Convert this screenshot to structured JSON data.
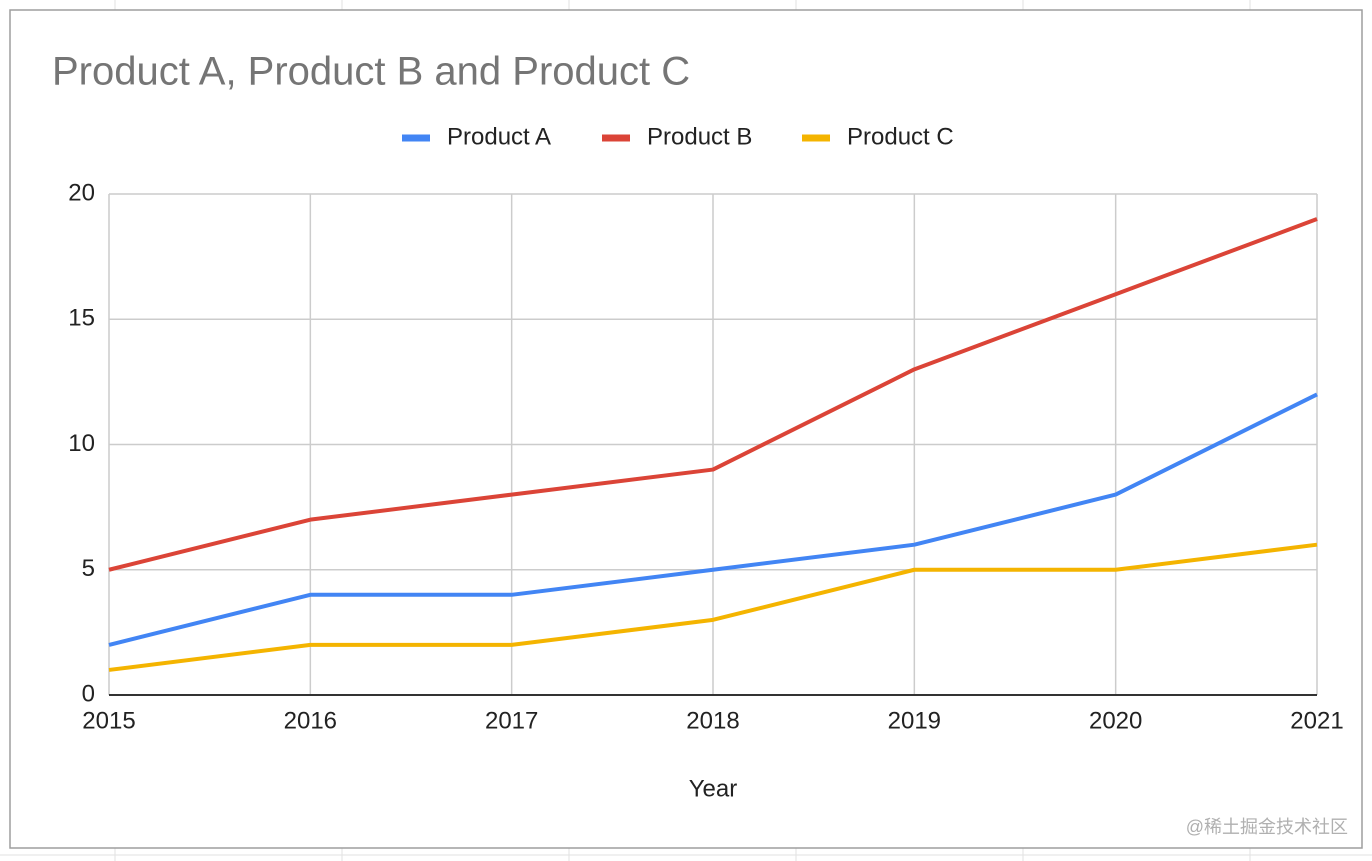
{
  "chart_data": {
    "type": "line",
    "title": "Product A, Product B and Product C",
    "x_label": "Year",
    "x": [
      2015,
      2016,
      2017,
      2018,
      2019,
      2020,
      2021
    ],
    "xlim": [
      2015,
      2021
    ],
    "xticks": [
      2015,
      2016,
      2017,
      2018,
      2019,
      2020,
      2021
    ],
    "ylim": [
      0,
      20
    ],
    "yticks": [
      0,
      5,
      10,
      15,
      20
    ],
    "grid": true,
    "legend": "top",
    "series": [
      {
        "name": "Product A",
        "color": "#4285f4",
        "values": [
          2,
          4,
          4,
          5,
          6,
          8,
          12
        ]
      },
      {
        "name": "Product B",
        "color": "#db4437",
        "values": [
          5,
          7,
          8,
          9,
          13,
          16,
          19
        ]
      },
      {
        "name": "Product C",
        "color": "#f4b400",
        "values": [
          1,
          2,
          2,
          3,
          5,
          5,
          6
        ]
      }
    ]
  },
  "watermark": "@稀土掘金技术社区"
}
